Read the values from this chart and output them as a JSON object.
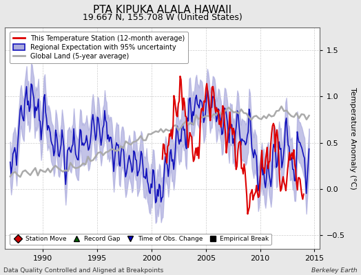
{
  "title": "PTA KIPUKA ALALA HAWAII",
  "subtitle": "19.667 N, 155.708 W (United States)",
  "ylabel": "Temperature Anomaly (°C)",
  "xlabel_left": "Data Quality Controlled and Aligned at Breakpoints",
  "xlabel_right": "Berkeley Earth",
  "ylim": [
    -0.65,
    1.75
  ],
  "xlim": [
    1986.5,
    2015.5
  ],
  "yticks": [
    -0.5,
    0,
    0.5,
    1.0,
    1.5
  ],
  "xticks": [
    1990,
    1995,
    2000,
    2005,
    2010,
    2015
  ],
  "legend_lines": [
    "This Temperature Station (12-month average)",
    "Regional Expectation with 95% uncertainty",
    "Global Land (5-year average)"
  ],
  "legend_markers": [
    [
      "Station Move",
      "#cc0000",
      "D"
    ],
    [
      "Record Gap",
      "#006600",
      "^"
    ],
    [
      "Time of Obs. Change",
      "#0000cc",
      "v"
    ],
    [
      "Empirical Break",
      "#000000",
      "s"
    ]
  ],
  "station_color": "#dd0000",
  "regional_color": "#1111bb",
  "regional_fill_color": "#aaaadd",
  "global_color": "#aaaaaa",
  "background_color": "#e8e8e8",
  "plot_background": "#ffffff",
  "grid_color": "#cccccc",
  "title_fontsize": 11,
  "subtitle_fontsize": 9,
  "tick_fontsize": 8,
  "ylabel_fontsize": 8
}
